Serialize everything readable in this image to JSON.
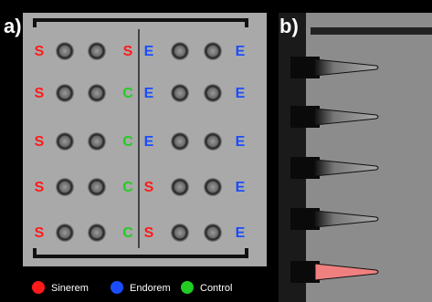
{
  "panel_a": {
    "label": "a)",
    "rows": [
      [
        "S",
        "S",
        "E",
        "E"
      ],
      [
        "S",
        "C",
        "E",
        "E"
      ],
      [
        "S",
        "C",
        "E",
        "E"
      ],
      [
        "S",
        "C",
        "S",
        "E"
      ],
      [
        "S",
        "C",
        "S",
        "E"
      ]
    ]
  },
  "panel_b": {
    "label": "b)"
  },
  "legend": [
    {
      "name": "Sinerem",
      "color": "#ff1a1a"
    },
    {
      "name": "Endorem",
      "color": "#1a4dff"
    },
    {
      "name": "Control",
      "color": "#22cc22"
    }
  ]
}
